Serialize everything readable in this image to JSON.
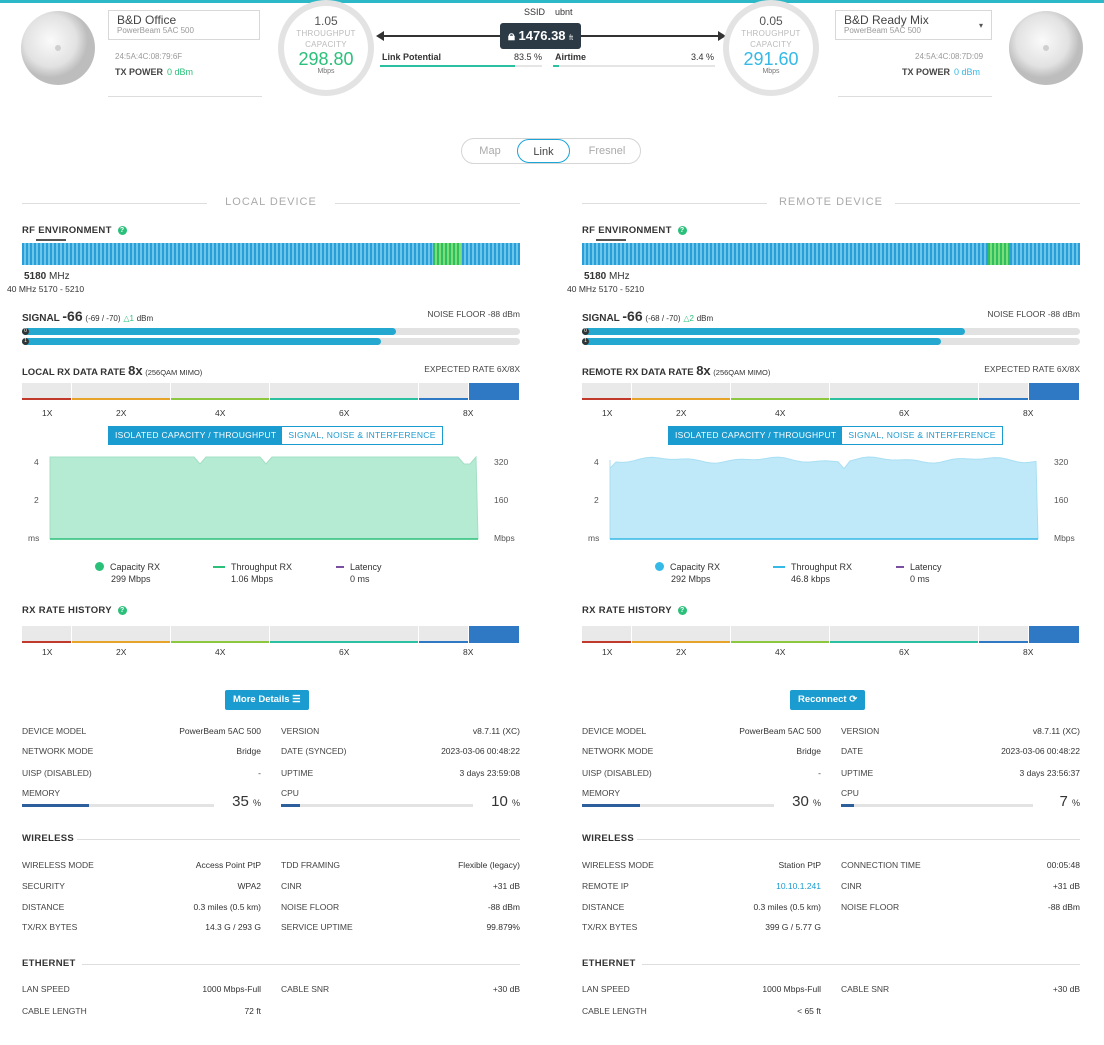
{
  "header": {
    "local": {
      "name": "B&D Office",
      "model": "PowerBeam 5AC 500",
      "mac": "24:5A:4C:08:79:6F",
      "tx_power_label": "TX POWER",
      "tx_power_value": "0 dBm",
      "gauge_top": "1.05",
      "gauge_label1": "THROUGHPUT",
      "gauge_label2": "CAPACITY",
      "gauge_value": "298.80",
      "gauge_unit": "Mbps",
      "gauge_color": "#2bc07a"
    },
    "remote": {
      "name": "B&D Ready Mix",
      "model": "PowerBeam 5AC 500",
      "mac": "24:5A:4C:08:7D:09",
      "tx_power_label": "TX POWER",
      "tx_power_value": "0 dBm",
      "gauge_top": "0.05",
      "gauge_label1": "THROUGHPUT",
      "gauge_label2": "CAPACITY",
      "gauge_value": "291.60",
      "gauge_unit": "Mbps",
      "gauge_color": "#35b9e6"
    },
    "ssid_label": "SSID",
    "ssid_value": "ubnt",
    "distance": "1476.38",
    "distance_unit": "ft",
    "link_potential_label": "Link Potential",
    "link_potential_value": "83.5 %",
    "link_potential_fraction": 0.835,
    "airtime_label": "Airtime",
    "airtime_value": "3.4 %",
    "airtime_fraction": 0.034
  },
  "view_toggle": {
    "options": [
      "Map",
      "Link",
      "Fresnel"
    ],
    "selected": "Link"
  },
  "local": {
    "section_title": "LOCAL DEVICE",
    "rf_title": "RF ENVIRONMENT",
    "freq": "5180",
    "freq_unit": "MHz",
    "bandwidth": "40",
    "bandwidth_unit": "MHz",
    "freq_range": "5170 - 5210",
    "signal_label": "SIGNAL",
    "signal_value": "-66",
    "signal_chains": "(-69 / -70)",
    "signal_delta": "△1",
    "signal_unit": "dBm",
    "signal_chain0": 0.75,
    "signal_chain1": 0.72,
    "noise_floor": "NOISE FLOOR -88 dBm",
    "rate_label": "LOCAL RX DATA RATE",
    "rate_value": "8x",
    "rate_mod": "(256QAM MIMO)",
    "expected_rate": "EXPECTED RATE 6X/8X",
    "tab_active": "ISOLATED CAPACITY / THROUGHPUT",
    "tab_inactive": "SIGNAL, NOISE & INTERFERENCE",
    "axis_left": [
      "4",
      "2",
      "ms"
    ],
    "axis_right": [
      "320",
      "160",
      "Mbps"
    ],
    "legend": [
      {
        "label": "Capacity RX",
        "value": "299 Mbps",
        "color": "#2bc07a",
        "icon": "dot"
      },
      {
        "label": "Throughput RX",
        "value": "1.06 Mbps",
        "color": "#2bc07a",
        "icon": "dash"
      },
      {
        "label": "Latency",
        "value": "0 ms",
        "color": "#7b4fa0",
        "icon": "dash"
      }
    ],
    "history_title": "RX RATE HISTORY",
    "action_button": "More Details",
    "fill_color": "#b5ebd3",
    "line_color": "#a3dfc4"
  },
  "remote": {
    "section_title": "REMOTE DEVICE",
    "rf_title": "RF ENVIRONMENT",
    "freq": "5180",
    "freq_unit": "MHz",
    "bandwidth": "40",
    "bandwidth_unit": "MHz",
    "freq_range": "5170 - 5210",
    "signal_label": "SIGNAL",
    "signal_value": "-66",
    "signal_chains": "(-68 / -70)",
    "signal_delta": "△2",
    "signal_unit": "dBm",
    "signal_chain0": 0.77,
    "signal_chain1": 0.72,
    "noise_floor": "NOISE FLOOR -88 dBm",
    "rate_label": "REMOTE RX DATA RATE",
    "rate_value": "8x",
    "rate_mod": "(256QAM MIMO)",
    "expected_rate": "EXPECTED RATE 6X/8X",
    "tab_active": "ISOLATED CAPACITY / THROUGHPUT",
    "tab_inactive": "SIGNAL, NOISE & INTERFERENCE",
    "axis_left": [
      "4",
      "2",
      "ms"
    ],
    "axis_right": [
      "320",
      "160",
      "Mbps"
    ],
    "legend": [
      {
        "label": "Capacity RX",
        "value": "292 Mbps",
        "color": "#35b9e6",
        "icon": "dot"
      },
      {
        "label": "Throughput RX",
        "value": "46.8 kbps",
        "color": "#35b9e6",
        "icon": "dash"
      },
      {
        "label": "Latency",
        "value": "0 ms",
        "color": "#7b4fa0",
        "icon": "dash"
      }
    ],
    "history_title": "RX RATE HISTORY",
    "action_button": "Reconnect",
    "fill_color": "#bfe9f8",
    "line_color": "#a8dff3"
  },
  "rate_scale": [
    "1X",
    "2X",
    "4X",
    "6X",
    "8X"
  ],
  "local_info": {
    "left": [
      [
        "DEVICE MODEL",
        "PowerBeam 5AC 500"
      ],
      [
        "NETWORK MODE",
        "Bridge"
      ],
      [
        "UISP (DISABLED)",
        "-"
      ]
    ],
    "right": [
      [
        "VERSION",
        "v8.7.11 (XC)"
      ],
      [
        "DATE (SYNCED)",
        "2023-03-06 00:48:22"
      ],
      [
        "UPTIME",
        "3 days 23:59:08"
      ]
    ],
    "memory_label": "MEMORY",
    "memory_value": "35",
    "memory_pct": 0.35,
    "cpu_label": "CPU",
    "cpu_value": "10",
    "cpu_pct": 0.1,
    "wireless_title": "WIRELESS",
    "wireless_left": [
      [
        "WIRELESS MODE",
        "Access Point PtP"
      ],
      [
        "SECURITY",
        "WPA2"
      ],
      [
        "DISTANCE",
        "0.3 miles (0.5 km)"
      ],
      [
        "TX/RX BYTES",
        "14.3 G / 293 G"
      ]
    ],
    "wireless_right": [
      [
        "TDD FRAMING",
        "Flexible (legacy)"
      ],
      [
        "CINR",
        "+31 dB"
      ],
      [
        "NOISE FLOOR",
        "-88 dBm"
      ],
      [
        "SERVICE UPTIME",
        "99.879%"
      ]
    ],
    "ethernet_title": "ETHERNET",
    "ethernet_left": [
      [
        "LAN SPEED",
        "1000 Mbps-Full"
      ],
      [
        "CABLE LENGTH",
        "72 ft"
      ]
    ],
    "ethernet_right": [
      [
        "CABLE SNR",
        "+30 dB"
      ]
    ]
  },
  "remote_info": {
    "left": [
      [
        "DEVICE MODEL",
        "PowerBeam 5AC 500"
      ],
      [
        "NETWORK MODE",
        "Bridge"
      ],
      [
        "UISP (DISABLED)",
        "-"
      ]
    ],
    "right": [
      [
        "VERSION",
        "v8.7.11 (XC)"
      ],
      [
        "DATE",
        "2023-03-06 00:48:22"
      ],
      [
        "UPTIME",
        "3 days 23:56:37"
      ]
    ],
    "memory_label": "MEMORY",
    "memory_value": "30",
    "memory_pct": 0.3,
    "cpu_label": "CPU",
    "cpu_value": "7",
    "cpu_pct": 0.07,
    "wireless_title": "WIRELESS",
    "wireless_left": [
      [
        "WIRELESS MODE",
        "Station PtP"
      ],
      [
        "REMOTE IP",
        "10.10.1.241"
      ],
      [
        "DISTANCE",
        "0.3 miles (0.5 km)"
      ],
      [
        "TX/RX BYTES",
        "399 G / 5.77 G"
      ]
    ],
    "wireless_right": [
      [
        "CONNECTION TIME",
        "00:05:48"
      ],
      [
        "CINR",
        "+31 dB"
      ],
      [
        "NOISE FLOOR",
        "-88 dBm"
      ]
    ],
    "ethernet_title": "ETHERNET",
    "ethernet_left": [
      [
        "LAN SPEED",
        "1000 Mbps-Full"
      ],
      [
        "CABLE LENGTH",
        "< 65 ft"
      ]
    ],
    "ethernet_right": [
      [
        "CABLE SNR",
        "+30 dB"
      ]
    ]
  }
}
